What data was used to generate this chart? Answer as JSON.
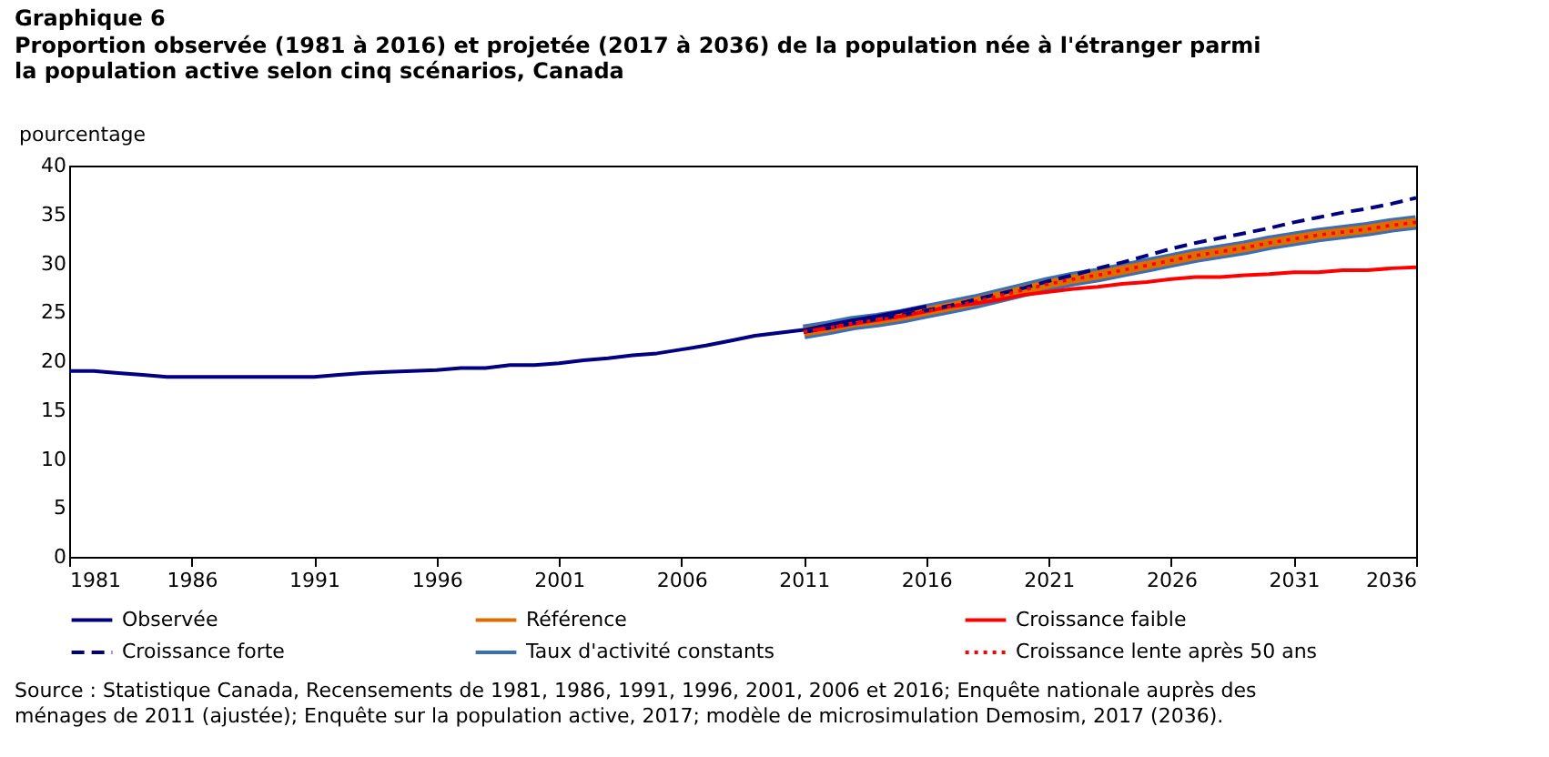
{
  "chart_data": {
    "type": "line",
    "title": "Graphique  6",
    "subtitle": "Proportion observée (1981 à 2016) et projetée (2017 à 2036) de la population née à l'étranger parmi la population active selon cinq scénarios, Canada",
    "ylabel": "pourcentage",
    "xlim": [
      1981,
      2036
    ],
    "xticks": [
      1981,
      1986,
      1991,
      1996,
      2001,
      2006,
      2011,
      2016,
      2021,
      2026,
      2031,
      2036
    ],
    "ylim": [
      0,
      40
    ],
    "yticks": [
      0,
      5,
      10,
      15,
      20,
      25,
      30,
      35,
      40
    ],
    "grid": false,
    "legend": "bottom",
    "annotations": [
      "Source : Statistique Canada, Recensements de 1981, 1986, 1991, 1996, 2001, 2006 et 2016; Enquête nationale auprès des ménages de 2011 (ajustée); Enquête sur la population active, 2017; modèle de microsimulation Demosim, 2017 (2036)."
    ],
    "series": [
      {
        "name": "Observée",
        "color": "#000080",
        "line_style": "solid",
        "x": [
          1981,
          1982,
          1983,
          1984,
          1985,
          1986,
          1987,
          1988,
          1989,
          1990,
          1991,
          1992,
          1993,
          1994,
          1995,
          1996,
          1997,
          1998,
          1999,
          2000,
          2001,
          2002,
          2003,
          2004,
          2005,
          2006,
          2007,
          2008,
          2009,
          2010,
          2011,
          2012,
          2013,
          2014,
          2015,
          2016
        ],
        "values": [
          19.0,
          19.0,
          18.8,
          18.6,
          18.4,
          18.4,
          18.4,
          18.4,
          18.4,
          18.4,
          18.4,
          18.6,
          18.8,
          18.9,
          19.0,
          19.1,
          19.3,
          19.3,
          19.6,
          19.6,
          19.8,
          20.1,
          20.3,
          20.6,
          20.8,
          21.2,
          21.6,
          22.1,
          22.6,
          22.9,
          23.2,
          23.7,
          24.2,
          24.6,
          25.1,
          25.6
        ]
      },
      {
        "name": "Référence",
        "color": "#e06c00",
        "line_style": "solid",
        "x": [
          2011,
          2012,
          2013,
          2014,
          2015,
          2016,
          2017,
          2018,
          2019,
          2020,
          2021,
          2022,
          2023,
          2024,
          2025,
          2026,
          2027,
          2028,
          2029,
          2030,
          2031,
          2032,
          2033,
          2034,
          2035,
          2036
        ],
        "values": [
          23.0,
          23.4,
          23.9,
          24.2,
          24.6,
          25.1,
          25.6,
          26.1,
          26.7,
          27.3,
          27.9,
          28.4,
          28.8,
          29.3,
          29.8,
          30.3,
          30.8,
          31.2,
          31.6,
          32.1,
          32.5,
          32.9,
          33.2,
          33.5,
          33.9,
          34.2
        ]
      },
      {
        "name": "Croissance faible",
        "color": "#ff0000",
        "line_style": "solid",
        "x": [
          2011,
          2012,
          2013,
          2014,
          2015,
          2016,
          2017,
          2018,
          2019,
          2020,
          2021,
          2022,
          2023,
          2024,
          2025,
          2026,
          2027,
          2028,
          2029,
          2030,
          2031,
          2032,
          2033,
          2034,
          2035,
          2036
        ],
        "values": [
          23.0,
          23.4,
          23.8,
          24.2,
          24.6,
          25.1,
          25.6,
          25.9,
          26.3,
          26.8,
          27.1,
          27.4,
          27.6,
          27.9,
          28.1,
          28.4,
          28.6,
          28.6,
          28.8,
          28.9,
          29.1,
          29.1,
          29.3,
          29.3,
          29.5,
          29.6
        ]
      },
      {
        "name": "Croissance forte",
        "color": "#000080",
        "line_style": "dashed",
        "x": [
          2011,
          2012,
          2013,
          2014,
          2015,
          2016,
          2017,
          2018,
          2019,
          2020,
          2021,
          2022,
          2023,
          2024,
          2025,
          2026,
          2027,
          2028,
          2029,
          2030,
          2031,
          2032,
          2033,
          2034,
          2035,
          2036
        ],
        "values": [
          23.0,
          23.4,
          23.9,
          24.3,
          24.7,
          25.2,
          25.7,
          26.3,
          26.9,
          27.5,
          28.2,
          28.8,
          29.5,
          30.1,
          30.8,
          31.5,
          32.1,
          32.6,
          33.1,
          33.6,
          34.2,
          34.7,
          35.2,
          35.6,
          36.1,
          36.7
        ]
      },
      {
        "name": "Taux d'activité constants",
        "color": "#3a6fb5",
        "line_style": "solid",
        "x": [
          2011,
          2012,
          2013,
          2014,
          2015,
          2016,
          2017,
          2018,
          2019,
          2020,
          2021,
          2022,
          2023,
          2024,
          2025,
          2026,
          2027,
          2028,
          2029,
          2030,
          2031,
          2032,
          2033,
          2034,
          2035,
          2036
        ],
        "values": [
          23.0,
          23.4,
          23.9,
          24.2,
          24.6,
          25.1,
          25.6,
          26.1,
          26.7,
          27.3,
          27.9,
          28.4,
          28.8,
          29.3,
          29.8,
          30.3,
          30.8,
          31.2,
          31.6,
          32.1,
          32.5,
          32.9,
          33.2,
          33.5,
          33.9,
          34.2
        ]
      },
      {
        "name": "Croissance lente après 50 ans",
        "color": "#ff0000",
        "line_style": "dotted",
        "x": [
          2011,
          2012,
          2013,
          2014,
          2015,
          2016,
          2017,
          2018,
          2019,
          2020,
          2021,
          2022,
          2023,
          2024,
          2025,
          2026,
          2027,
          2028,
          2029,
          2030,
          2031,
          2032,
          2033,
          2034,
          2035,
          2036
        ],
        "values": [
          23.0,
          23.4,
          23.9,
          24.2,
          24.6,
          25.1,
          25.6,
          26.1,
          26.7,
          27.3,
          27.9,
          28.4,
          28.8,
          29.3,
          29.8,
          30.3,
          30.8,
          31.2,
          31.6,
          32.1,
          32.5,
          32.9,
          33.2,
          33.5,
          33.9,
          34.2
        ]
      }
    ]
  }
}
